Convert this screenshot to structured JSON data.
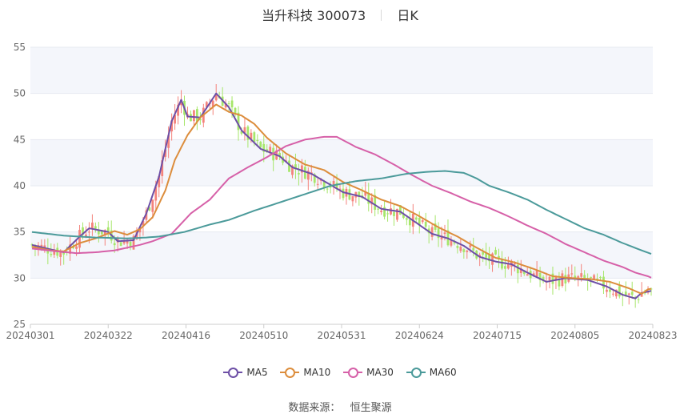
{
  "header": {
    "title": "当升科技 300073",
    "period_tab": "日K"
  },
  "source": {
    "label": "数据来源：",
    "name": "恒生聚源"
  },
  "colors": {
    "up": "#f4837c",
    "down": "#a6e66a",
    "ma5": "#6d4fa6",
    "ma10": "#dc8d3c",
    "ma30": "#d660a8",
    "ma60": "#4b9a9a",
    "grid": "#e6e9f0",
    "band": "#f4f6fb"
  },
  "chart_data": {
    "type": "candlestick",
    "yaxis": {
      "min": 25,
      "max": 55,
      "ticks": [
        25,
        30,
        35,
        40,
        45,
        50,
        55
      ]
    },
    "xaxis": {
      "ticks": [
        "20240301",
        "20240322",
        "20240416",
        "20240510",
        "20240531",
        "20240624",
        "20240715",
        "20240805",
        "20240823"
      ]
    },
    "series": [
      {
        "name": "MA5",
        "color": "#6d4fa6",
        "values": [
          [
            0,
            33.6
          ],
          [
            6,
            33.1
          ],
          [
            10,
            32.8
          ],
          [
            15,
            34.5
          ],
          [
            18,
            35.4
          ],
          [
            24,
            35
          ],
          [
            27,
            34
          ],
          [
            32,
            34.1
          ],
          [
            36,
            37
          ],
          [
            40,
            41
          ],
          [
            44,
            47
          ],
          [
            47,
            49.3
          ],
          [
            49,
            47.5
          ],
          [
            53,
            47.4
          ],
          [
            58,
            50
          ],
          [
            62,
            48.5
          ],
          [
            66,
            46
          ],
          [
            72,
            44
          ],
          [
            78,
            43.2
          ],
          [
            82,
            42
          ],
          [
            88,
            41.3
          ],
          [
            92,
            40.5
          ],
          [
            98,
            39.3
          ],
          [
            104,
            38.8
          ],
          [
            110,
            37.5
          ],
          [
            116,
            37.2
          ],
          [
            121,
            36
          ],
          [
            126,
            34.8
          ],
          [
            131,
            34.3
          ],
          [
            136,
            33.5
          ],
          [
            141,
            32.3
          ],
          [
            146,
            31.8
          ],
          [
            151,
            31.5
          ],
          [
            156,
            30.6
          ],
          [
            162,
            29.6
          ],
          [
            168,
            30
          ],
          [
            175,
            29.8
          ],
          [
            181,
            29.1
          ],
          [
            186,
            28.2
          ],
          [
            190,
            27.8
          ],
          [
            192,
            28.4
          ],
          [
            196,
            28.7
          ]
        ]
      },
      {
        "name": "MA10",
        "color": "#dc8d3c",
        "values": [
          [
            0,
            33.4
          ],
          [
            6,
            33
          ],
          [
            10,
            32.9
          ],
          [
            15,
            33.8
          ],
          [
            20,
            34.3
          ],
          [
            26,
            35.1
          ],
          [
            30,
            34.7
          ],
          [
            34,
            35.3
          ],
          [
            38,
            36.6
          ],
          [
            42,
            39.5
          ],
          [
            45,
            42.8
          ],
          [
            49,
            45.5
          ],
          [
            53,
            47.4
          ],
          [
            58,
            48.8
          ],
          [
            62,
            48
          ],
          [
            66,
            47.6
          ],
          [
            70,
            46.7
          ],
          [
            74,
            45.2
          ],
          [
            80,
            43.5
          ],
          [
            86,
            42.3
          ],
          [
            92,
            41.7
          ],
          [
            98,
            40.4
          ],
          [
            104,
            39.5
          ],
          [
            110,
            38.5
          ],
          [
            116,
            37.8
          ],
          [
            122,
            36.7
          ],
          [
            128,
            35.5
          ],
          [
            134,
            34.5
          ],
          [
            140,
            33.3
          ],
          [
            146,
            32.2
          ],
          [
            152,
            31.7
          ],
          [
            158,
            31
          ],
          [
            164,
            30.2
          ],
          [
            170,
            30
          ],
          [
            176,
            29.9
          ],
          [
            182,
            29.6
          ],
          [
            188,
            28.9
          ],
          [
            192,
            28.3
          ],
          [
            194,
            28.8
          ],
          [
            196,
            28.9
          ]
        ]
      },
      {
        "name": "MA30",
        "color": "#d660a8",
        "values": [
          [
            0,
            33.2
          ],
          [
            8,
            32.9
          ],
          [
            14,
            32.7
          ],
          [
            20,
            32.8
          ],
          [
            26,
            33
          ],
          [
            30,
            33.3
          ],
          [
            34,
            33.6
          ],
          [
            38,
            34
          ],
          [
            44,
            34.8
          ],
          [
            50,
            37
          ],
          [
            56,
            38.5
          ],
          [
            62,
            40.8
          ],
          [
            68,
            42
          ],
          [
            74,
            43.1
          ],
          [
            80,
            44.3
          ],
          [
            86,
            45
          ],
          [
            92,
            45.3
          ],
          [
            96,
            45.3
          ],
          [
            102,
            44.2
          ],
          [
            108,
            43.4
          ],
          [
            114,
            42.3
          ],
          [
            120,
            41.1
          ],
          [
            126,
            40
          ],
          [
            132,
            39.2
          ],
          [
            138,
            38.3
          ],
          [
            144,
            37.6
          ],
          [
            150,
            36.7
          ],
          [
            156,
            35.7
          ],
          [
            162,
            34.8
          ],
          [
            168,
            33.7
          ],
          [
            174,
            32.8
          ],
          [
            180,
            31.9
          ],
          [
            186,
            31.2
          ],
          [
            190,
            30.6
          ],
          [
            194,
            30.2
          ],
          [
            196,
            29.9
          ]
        ]
      },
      {
        "name": "MA60",
        "color": "#4b9a9a",
        "values": [
          [
            0,
            35
          ],
          [
            10,
            34.6
          ],
          [
            20,
            34.4
          ],
          [
            30,
            34.3
          ],
          [
            36,
            34.4
          ],
          [
            40,
            34.5
          ],
          [
            48,
            35
          ],
          [
            56,
            35.8
          ],
          [
            62,
            36.3
          ],
          [
            70,
            37.3
          ],
          [
            78,
            38.2
          ],
          [
            86,
            39.1
          ],
          [
            94,
            40
          ],
          [
            102,
            40.5
          ],
          [
            110,
            40.8
          ],
          [
            118,
            41.3
          ],
          [
            124,
            41.5
          ],
          [
            130,
            41.6
          ],
          [
            136,
            41.4
          ],
          [
            140,
            40.8
          ],
          [
            144,
            40
          ],
          [
            150,
            39.3
          ],
          [
            156,
            38.5
          ],
          [
            162,
            37.4
          ],
          [
            168,
            36.4
          ],
          [
            174,
            35.4
          ],
          [
            180,
            34.7
          ],
          [
            186,
            33.8
          ],
          [
            192,
            33
          ],
          [
            196,
            32.5
          ]
        ]
      }
    ],
    "candles_note": "Daily OHLC candles (up = red, down = green) following the moving averages; generated to match the visible price path."
  }
}
